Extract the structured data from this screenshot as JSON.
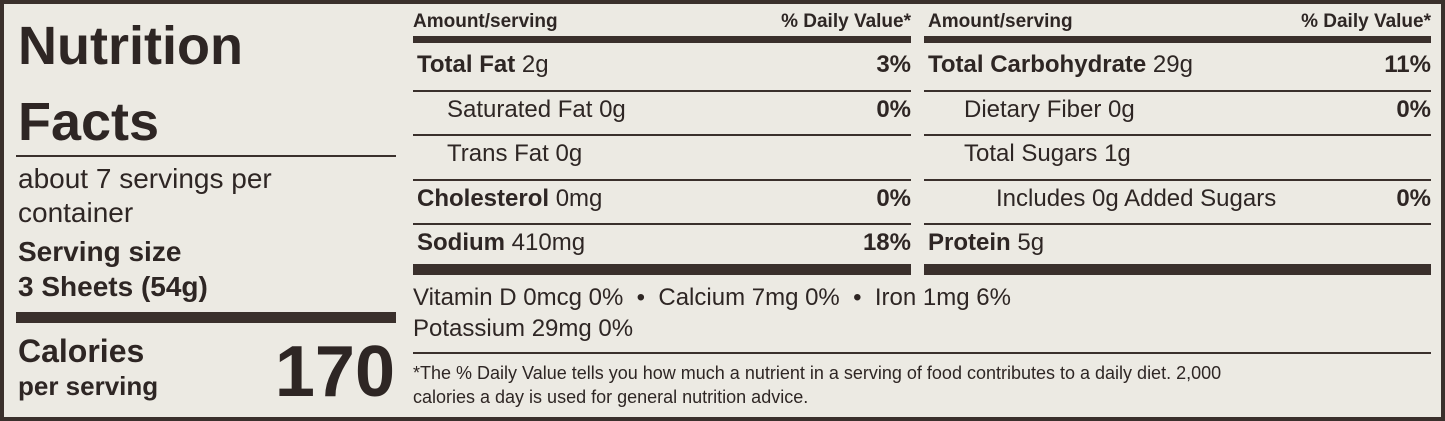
{
  "label": {
    "title_line1": "Nutrition",
    "title_line2": "Facts",
    "servings_line1": "about 7 servings per",
    "servings_line2": "container",
    "serving_size_label": "Serving size",
    "serving_size_value": "3 Sheets (54g)",
    "calories_label": "Calories",
    "calories_sub": "per serving",
    "calories_value": "170"
  },
  "left_table": {
    "amount_header": "Amount/serving",
    "dv_header": "% Daily Value*",
    "rows": [
      {
        "name": "Total Fat",
        "amount": " 2g",
        "dv": "3%"
      },
      {
        "name": "Saturated Fat 0g",
        "amount": "",
        "dv": "0%"
      },
      {
        "name": "Trans Fat 0g",
        "amount": "",
        "dv": ""
      },
      {
        "name": "Cholesterol",
        "amount": " 0mg",
        "dv": "0%"
      },
      {
        "name": "Sodium",
        "amount": " 410mg",
        "dv": "18%"
      }
    ]
  },
  "right_table": {
    "amount_header": "Amount/serving",
    "dv_header": "% Daily Value*",
    "rows": [
      {
        "name": "Total Carbohydrate",
        "amount": " 29g",
        "dv": "11%"
      },
      {
        "name": "Dietary Fiber 0g",
        "amount": "",
        "dv": "0%"
      },
      {
        "name": "Total Sugars 1g",
        "amount": "",
        "dv": ""
      },
      {
        "name": "Includes 0g Added Sugars",
        "amount": "",
        "dv": "0%"
      },
      {
        "name": "Protein",
        "amount": " 5g",
        "dv": ""
      }
    ]
  },
  "vitamins": {
    "line1": "Vitamin D 0mcg 0%  •  Calcium 7mg 0%  •  Iron 1mg 6%",
    "line2": "Potassium 29mg 0%"
  },
  "footnote": {
    "line1": "*The % Daily Value tells you how much a nutrient in a serving of food contributes to a daily diet. 2,000",
    "line2": "calories a day is used for general nutrition advice."
  }
}
